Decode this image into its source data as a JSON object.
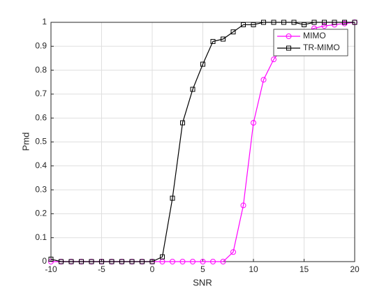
{
  "chart_data": {
    "type": "line",
    "xlabel": "SNR",
    "ylabel": "Pmd",
    "x": [
      -10,
      -9,
      -8,
      -7,
      -6,
      -5,
      -4,
      -3,
      -2,
      -1,
      0,
      1,
      2,
      3,
      4,
      5,
      6,
      7,
      8,
      9,
      10,
      11,
      12,
      13,
      14,
      15,
      16,
      17,
      18,
      19,
      20
    ],
    "series": [
      {
        "name": "MIMO",
        "color": "#ff00ff",
        "marker": "circle",
        "values": [
          0,
          0,
          0,
          0,
          0,
          0,
          0,
          0,
          0,
          0,
          0,
          0,
          0,
          0,
          0,
          0,
          0,
          0,
          0.04,
          0.235,
          0.58,
          0.76,
          0.845,
          0.9,
          0.94,
          0.96,
          0.975,
          0.985,
          0.99,
          0.995,
          1
        ]
      },
      {
        "name": "TR-MIMO",
        "color": "#000000",
        "marker": "square",
        "values": [
          0.01,
          0,
          0,
          0,
          0,
          0,
          0,
          0,
          0,
          0,
          0,
          0.02,
          0.265,
          0.58,
          0.72,
          0.825,
          0.92,
          0.93,
          0.96,
          0.99,
          0.99,
          1,
          1,
          1,
          1,
          0.99,
          1,
          1,
          1,
          1,
          1
        ]
      }
    ],
    "xlim": [
      -10,
      20
    ],
    "xticks": [
      -10,
      -5,
      0,
      5,
      10,
      15,
      20
    ],
    "ylim": [
      0,
      1
    ],
    "yticks": [
      0,
      0.1,
      0.2,
      0.3,
      0.4,
      0.5,
      0.6,
      0.7,
      0.8,
      0.9,
      1
    ],
    "grid": true,
    "legend": "northeast"
  }
}
